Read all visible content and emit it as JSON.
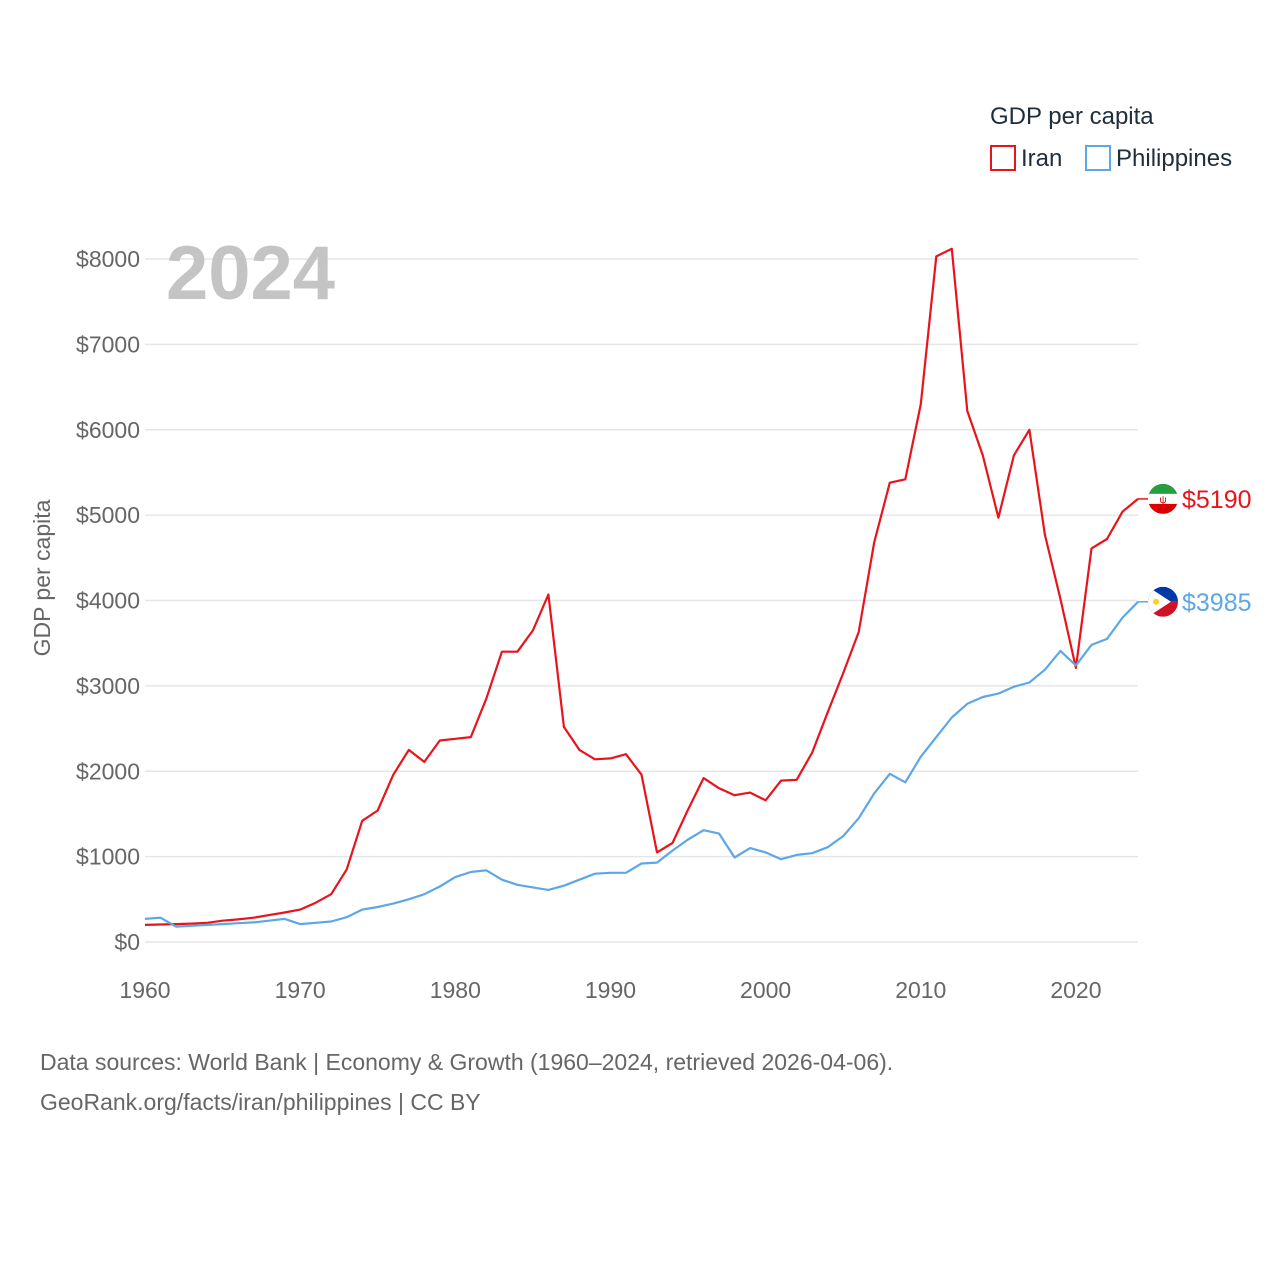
{
  "legend": {
    "title": "GDP per capita",
    "items": [
      {
        "label": "Iran",
        "color": "#e8141c"
      },
      {
        "label": "Philippines",
        "color": "#5ea7e6"
      }
    ]
  },
  "year_label": "2024",
  "footer": {
    "line1": "Data sources: World Bank | Economy & Growth (1960–2024, retrieved 2026-04-06).",
    "line2": "GeoRank.org/facts/iran/philippines | CC BY"
  },
  "chart_data": {
    "type": "line",
    "title": "GDP per capita",
    "xlabel": "",
    "ylabel": "GDP per capita",
    "xlim": [
      1960,
      2024
    ],
    "ylim": [
      0,
      8000
    ],
    "x_ticks": [
      1960,
      1970,
      1980,
      1990,
      2000,
      2010,
      2020
    ],
    "x_tick_labels": [
      "1960",
      "1970",
      "1980",
      "1990",
      "2000",
      "2010",
      "2020"
    ],
    "y_ticks": [
      0,
      1000,
      2000,
      3000,
      4000,
      5000,
      6000,
      7000,
      8000
    ],
    "y_tick_labels": [
      "$0",
      "$1000",
      "$2000",
      "$3000",
      "$4000",
      "$5000",
      "$6000",
      "$7000",
      "$8000"
    ],
    "grid": true,
    "legend_position": "top-right",
    "x": [
      1960,
      1961,
      1962,
      1963,
      1964,
      1965,
      1966,
      1967,
      1968,
      1969,
      1970,
      1971,
      1972,
      1973,
      1974,
      1975,
      1976,
      1977,
      1978,
      1979,
      1980,
      1981,
      1982,
      1983,
      1984,
      1985,
      1986,
      1987,
      1988,
      1989,
      1990,
      1991,
      1992,
      1993,
      1994,
      1995,
      1996,
      1997,
      1998,
      1999,
      2000,
      2001,
      2002,
      2003,
      2004,
      2005,
      2006,
      2007,
      2008,
      2009,
      2010,
      2011,
      2012,
      2013,
      2014,
      2015,
      2016,
      2017,
      2018,
      2019,
      2020,
      2021,
      2022,
      2023,
      2024
    ],
    "series": [
      {
        "name": "Iran",
        "color": "#e8141c",
        "end_label": "$5190",
        "values": [
          200,
          205,
          210,
          215,
          225,
          250,
          265,
          285,
          315,
          345,
          380,
          460,
          560,
          850,
          1420,
          1540,
          1960,
          2250,
          2110,
          2360,
          2380,
          2400,
          2850,
          3400,
          3400,
          3650,
          4070,
          2520,
          2250,
          2140,
          2150,
          2200,
          1960,
          1050,
          1160,
          1550,
          1920,
          1800,
          1720,
          1750,
          1660,
          1890,
          1900,
          2220,
          2690,
          3150,
          3630,
          4680,
          5380,
          5420,
          6300,
          8030,
          8120,
          6220,
          5700,
          4970,
          5700,
          6000,
          4770,
          4020,
          3210,
          4610,
          4720,
          5040,
          5190
        ]
      },
      {
        "name": "Philippines",
        "color": "#5ea7e6",
        "end_label": "$3985",
        "values": [
          270,
          285,
          180,
          190,
          200,
          210,
          220,
          230,
          250,
          270,
          210,
          225,
          240,
          290,
          380,
          410,
          450,
          500,
          560,
          650,
          760,
          820,
          840,
          730,
          670,
          640,
          610,
          660,
          730,
          800,
          810,
          810,
          920,
          930,
          1070,
          1200,
          1310,
          1270,
          990,
          1100,
          1050,
          970,
          1020,
          1040,
          1110,
          1240,
          1450,
          1740,
          1970,
          1870,
          2170,
          2400,
          2630,
          2790,
          2870,
          2910,
          2990,
          3040,
          3190,
          3410,
          3240,
          3480,
          3550,
          3800,
          3985
        ]
      }
    ]
  }
}
